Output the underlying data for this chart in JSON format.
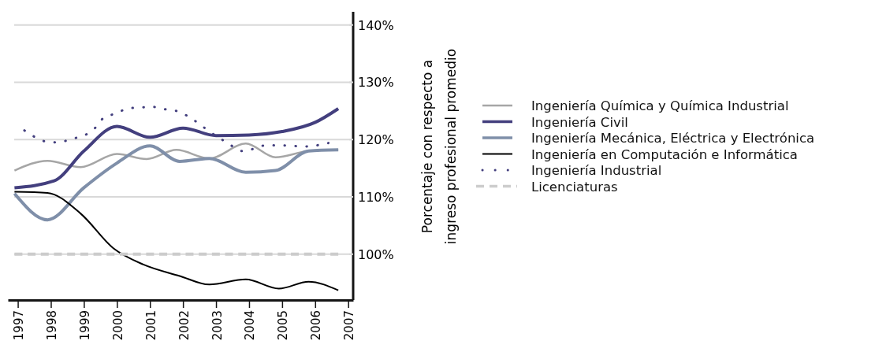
{
  "chart_data": {
    "type": "line",
    "ylabel": "Porcentaje con respecto a\ningreso profesional promedio",
    "xlim": [
      1996.7,
      2007.15
    ],
    "xticks": [
      1997,
      1998,
      1999,
      2000,
      2001,
      2002,
      2003,
      2004,
      2005,
      2006,
      2007
    ],
    "ylim": [
      92,
      142.3
    ],
    "yticks": [
      {
        "value": 100,
        "label": "100%"
      },
      {
        "value": 110,
        "label": "110%"
      },
      {
        "value": 120,
        "label": "120%"
      },
      {
        "value": 130,
        "label": "130%"
      },
      {
        "value": 140,
        "label": "140%"
      }
    ],
    "grid": "y",
    "legend": "right",
    "line_style": "solid",
    "series": [
      {
        "name": "Ingeniería Química y Química Industrial",
        "color": "#a6a6a6",
        "x": [
          1996.9,
          1997.9,
          1998.9,
          2000.0,
          2000.9,
          2001.8,
          2002.8,
          2003.9,
          2004.8,
          2005.8,
          2006.7
        ],
        "values": [
          114.6,
          116.3,
          115.2,
          117.5,
          116.6,
          118.2,
          116.7,
          119.3,
          116.9,
          118,
          118.2
        ]
      },
      {
        "name": "Ingeniería Civil",
        "color": "#433f7e",
        "x": [
          1996.9,
          1998.1,
          1999.0,
          2000.0,
          2001.0,
          2002.0,
          2003.0,
          2004.0,
          2005.0,
          2006.0,
          2006.7
        ],
        "values": [
          111.6,
          112.8,
          118,
          122.3,
          120.4,
          122,
          120.7,
          120.8,
          121.4,
          123,
          125.4
        ]
      },
      {
        "name": "Ingeniería Mecánica, Eléctrica y Electrónica",
        "color": "#7f8fa9",
        "x": [
          1996.9,
          1997.9,
          1999.0,
          2000.0,
          2001.0,
          2001.9,
          2002.8,
          2003.9,
          2004.8,
          2005.8,
          2006.7
        ],
        "values": [
          110.6,
          106,
          111.6,
          115.9,
          118.9,
          116.2,
          116.7,
          114.3,
          114.6,
          118,
          118.2
        ]
      },
      {
        "name": "Ingeniería en Computación e Informática",
        "color": "#000000",
        "x": [
          1996.9,
          1997.9,
          1998.9,
          1999.9,
          2000.8,
          2001.9,
          2002.8,
          2003.9,
          2004.9,
          2005.8,
          2006.7
        ],
        "values": [
          110.9,
          110.7,
          107.1,
          101,
          98.2,
          96.2,
          94.7,
          95.6,
          94,
          95.2,
          93.7
        ]
      },
      {
        "name": "Ingeniería Industrial",
        "color": "#433f7e",
        "line_style": "dotted",
        "x": [
          1997.2,
          1997.5,
          1997.9,
          1998.25,
          1998.6,
          1999.0,
          1999.3,
          1999.6,
          2000.0,
          2000.3,
          2000.7,
          2001.1,
          2001.45,
          2001.8,
          2002.2,
          2002.5,
          2002.8,
          2003.1,
          2003.45,
          2003.8,
          2004.15,
          2004.5,
          2004.9,
          2005.3,
          2005.65,
          2006.05,
          2006.4
        ],
        "values": [
          121.6,
          120.5,
          119.6,
          119.5,
          120.1,
          120.7,
          121.8,
          123.8,
          124.6,
          125.4,
          125.6,
          125.7,
          125.3,
          125,
          123.9,
          122.7,
          121.4,
          120.3,
          119,
          118,
          118.4,
          119,
          119,
          118.9,
          118.8,
          119,
          119.4
        ]
      },
      {
        "name": "Licenciaturas",
        "color": "#cccccc",
        "line_style": "dashed",
        "x": [
          1996.9,
          2006.7
        ],
        "values": [
          100,
          100
        ]
      }
    ]
  }
}
